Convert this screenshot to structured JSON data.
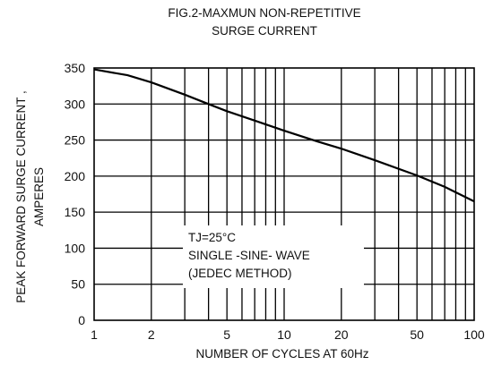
{
  "chart_data": {
    "type": "line",
    "title": [
      "FIG.2-MAXMUN NON-REPETITIVE",
      "SURGE CURRENT"
    ],
    "xlabel": "NUMBER OF CYCLES AT 60Hz",
    "ylabel": [
      "PEAK  FORWARD SURGE CURRENT ,",
      "AMPERES"
    ],
    "x_scale": "log",
    "xlim": [
      1,
      100
    ],
    "ylim": [
      0,
      350
    ],
    "x_ticks": [
      1,
      2,
      5,
      10,
      20,
      50,
      100
    ],
    "x_tick_labels": [
      "1",
      "2",
      "5",
      "10",
      "20",
      "50",
      "100"
    ],
    "x_gridlines": [
      1,
      2,
      3,
      4,
      5,
      6,
      7,
      8,
      9,
      10,
      20,
      30,
      40,
      50,
      60,
      70,
      80,
      90,
      100
    ],
    "y_ticks": [
      0,
      50,
      100,
      150,
      200,
      250,
      300,
      350
    ],
    "y_tick_labels": [
      "0",
      "50",
      "100",
      "150",
      "200",
      "250",
      "300",
      "350"
    ],
    "grid": true,
    "annotation": [
      "TJ=25°C",
      "SINGLE -SINE- WAVE",
      "(JEDEC METHOD)"
    ],
    "series": [
      {
        "x": [
          1,
          1.5,
          2,
          3,
          4,
          5,
          7,
          10,
          15,
          20,
          30,
          50,
          70,
          100
        ],
        "y": [
          348,
          340,
          330,
          313,
          300,
          290,
          277,
          263,
          248,
          238,
          222,
          201,
          185,
          165
        ],
        "color": "#000000"
      }
    ]
  }
}
